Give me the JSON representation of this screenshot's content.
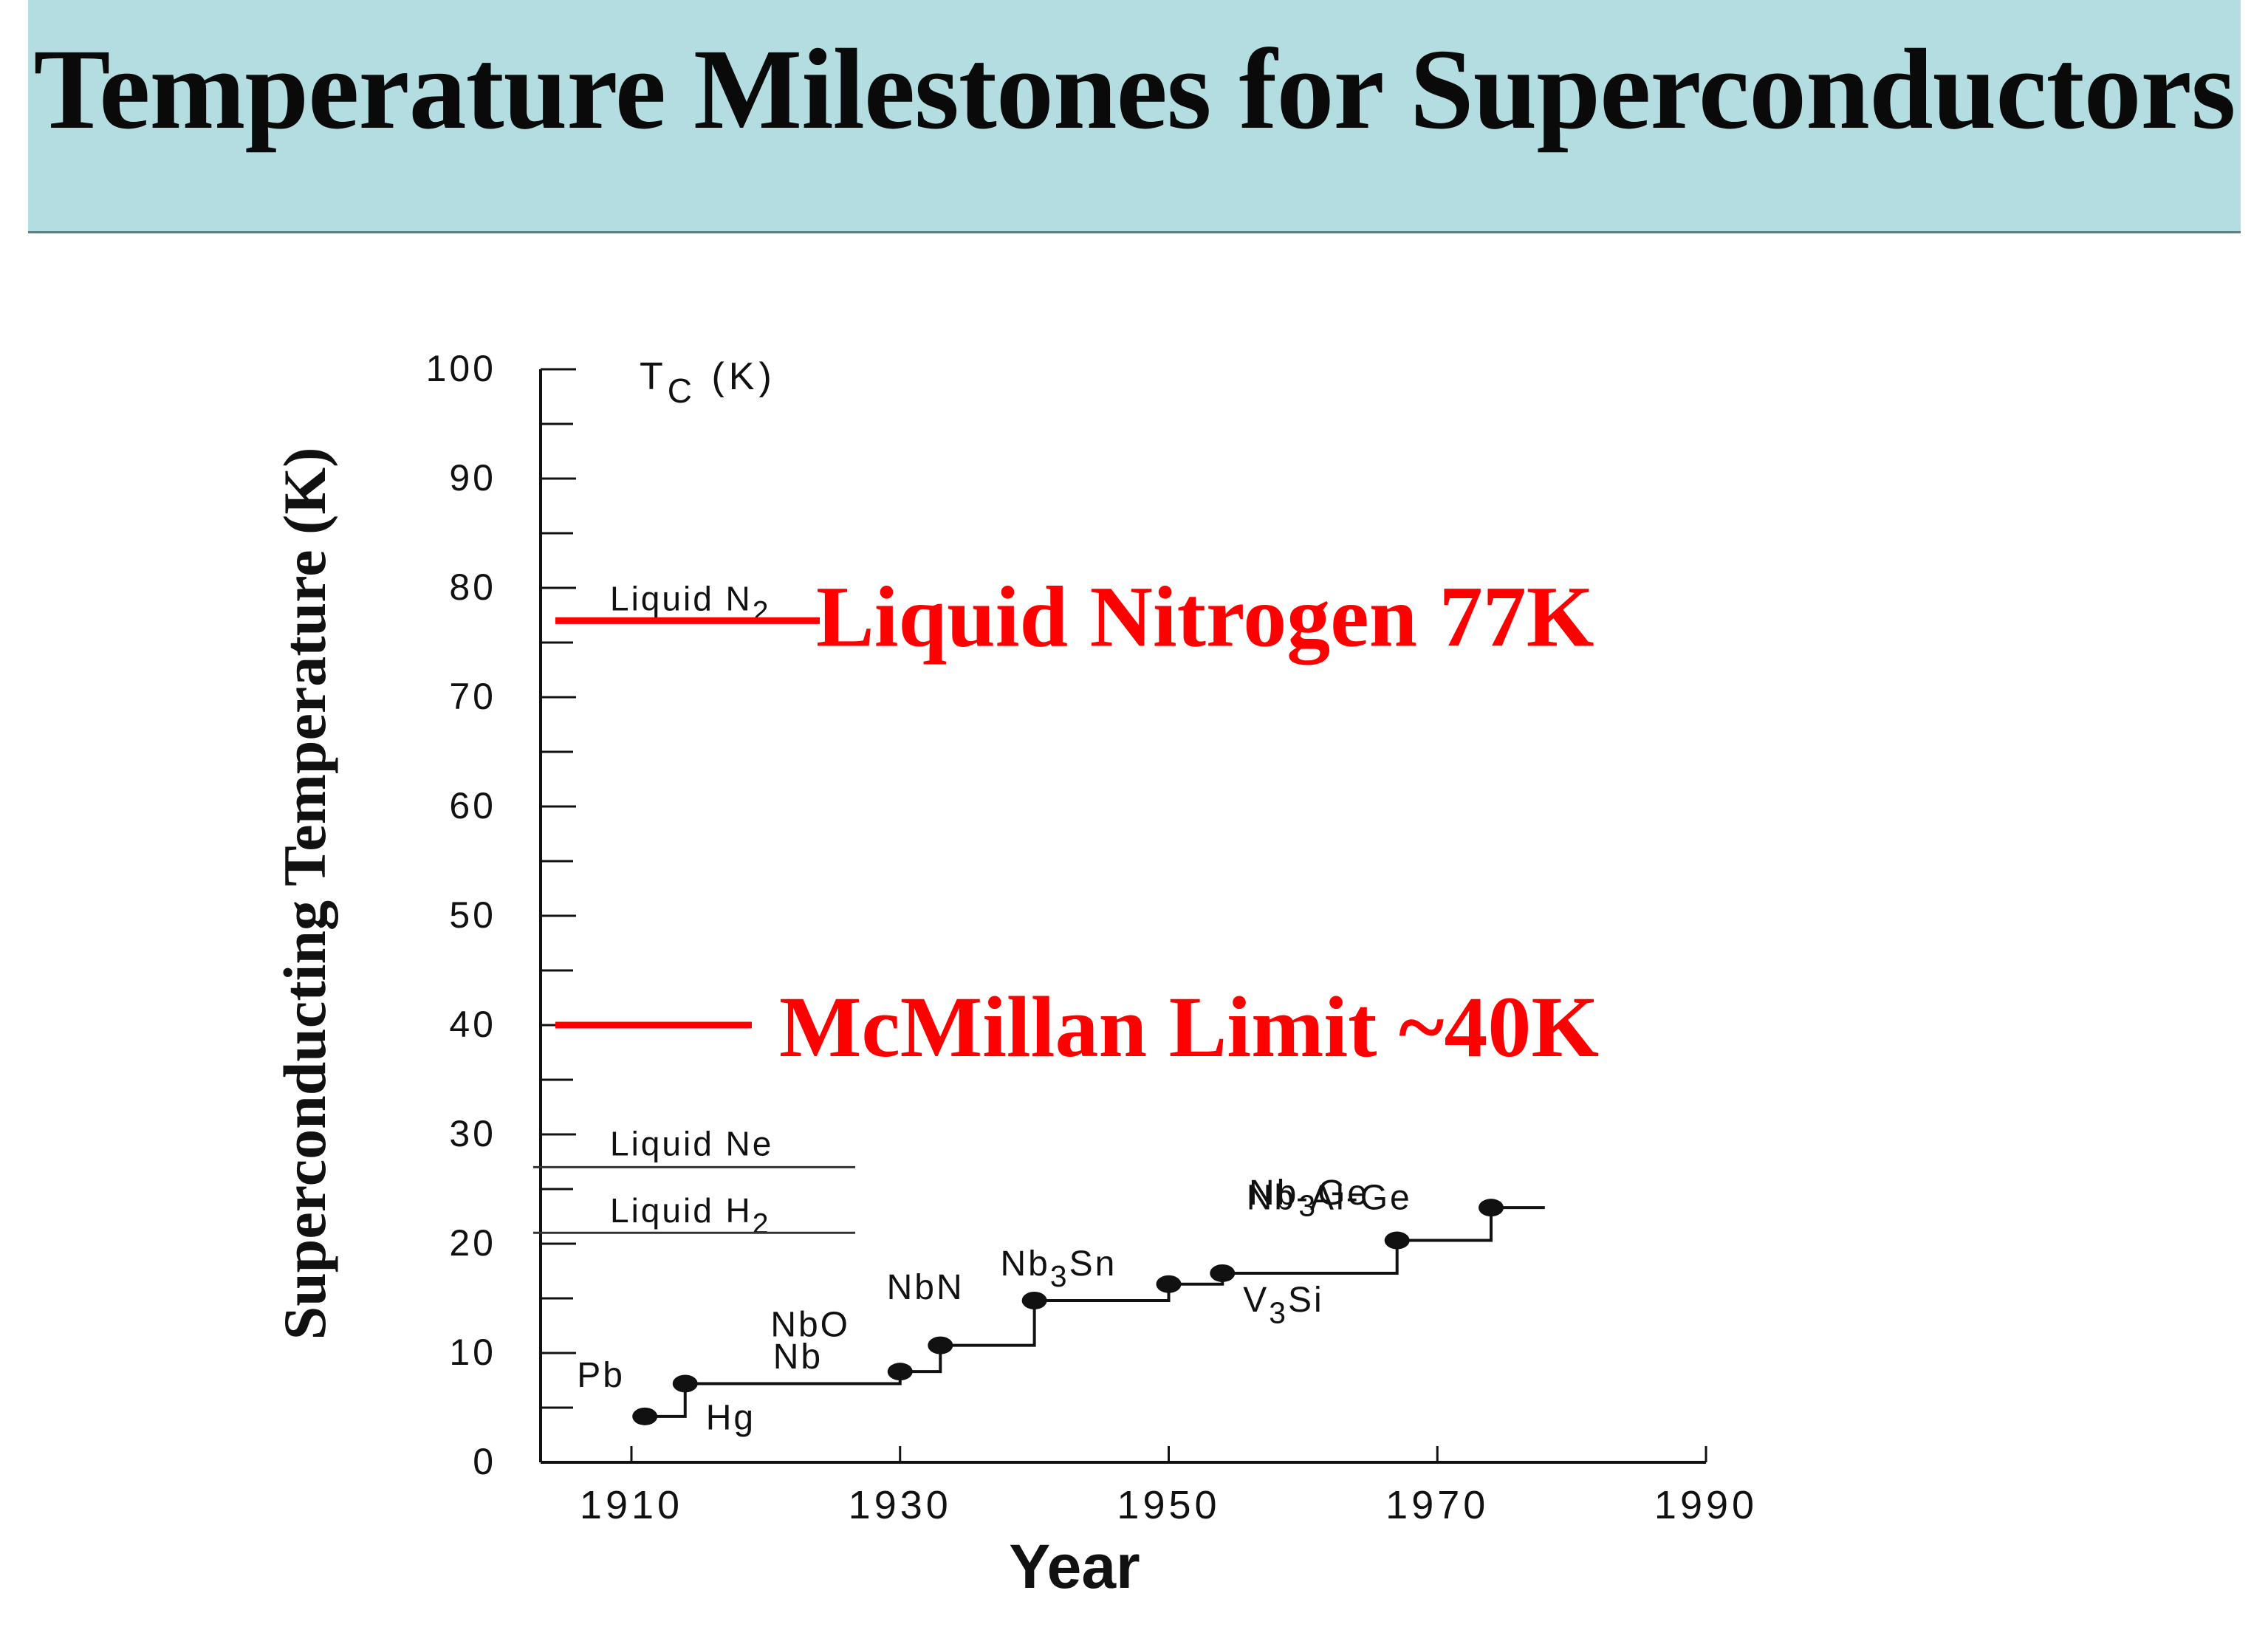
{
  "slide": {
    "title": "Temperature Milestones for Superconductors"
  },
  "colors": {
    "header_bg": "#b3dde0",
    "accent_red": "#ff0000",
    "ink": "#111111"
  },
  "chart_data": {
    "type": "line",
    "subtype": "step",
    "title": "",
    "xlabel": "Year",
    "ylabel": "Superconducting Temperature  (K)",
    "y_unit_label": {
      "base": "T",
      "sub": "C",
      "rest": "(K)"
    },
    "xlim": [
      1903,
      1990
    ],
    "ylim": [
      0,
      100
    ],
    "x_ticks": [
      1910,
      1930,
      1950,
      1970,
      1990
    ],
    "y_ticks": [
      0,
      10,
      20,
      30,
      40,
      50,
      60,
      70,
      80,
      90,
      100
    ],
    "grid": false,
    "series": [
      {
        "type": "step",
        "points": [
          {
            "x": 1911,
            "y": 4.2,
            "label": [
              {
                "t": "Pb"
              }
            ]
          },
          {
            "x": 1914,
            "y": 7.2,
            "label": [
              {
                "t": "Hg"
              }
            ]
          },
          {
            "x": 1930,
            "y": 8.3,
            "label": [
              {
                "t": "Nb"
              }
            ]
          },
          {
            "x": 1933,
            "y": 10.7,
            "label": [
              {
                "t": "NbO"
              }
            ]
          },
          {
            "x": 1940,
            "y": 14.8,
            "label": [
              {
                "t": "NbN"
              }
            ]
          },
          {
            "x": 1950,
            "y": 16.3,
            "label": [
              {
                "t": "Nb"
              },
              {
                "t": "3",
                "sub": true
              },
              {
                "t": "Sn"
              }
            ]
          },
          {
            "x": 1954,
            "y": 17.3,
            "label": [
              {
                "t": "V"
              },
              {
                "t": "3",
                "sub": true
              },
              {
                "t": "Si"
              }
            ]
          },
          {
            "x": 1967,
            "y": 20.3,
            "label": [
              {
                "t": "Nb-Al-Ge"
              }
            ]
          },
          {
            "x": 1974,
            "y": 23.3,
            "label": [
              {
                "t": "Nb"
              },
              {
                "t": "3",
                "sub": true
              },
              {
                "t": "Ge"
              }
            ]
          }
        ],
        "end_x": 1978
      }
    ],
    "reference_lines": [
      {
        "y": 77,
        "label": [
          {
            "t": "Liquid  N"
          },
          {
            "t": "2",
            "sub": true
          }
        ],
        "annotation": "Liquid Nitrogen 77K",
        "color": "#ff0000"
      },
      {
        "y": 40,
        "label": [],
        "annotation": "McMillan Limit  ~40K",
        "color": "#ff0000"
      },
      {
        "y": 27,
        "label": [
          {
            "t": "Liquid  Ne"
          }
        ],
        "annotation": "",
        "color": "#333333"
      },
      {
        "y": 21,
        "label": [
          {
            "t": "Liquid  H"
          },
          {
            "t": "2",
            "sub": true
          }
        ],
        "annotation": "",
        "color": "#333333"
      }
    ]
  }
}
